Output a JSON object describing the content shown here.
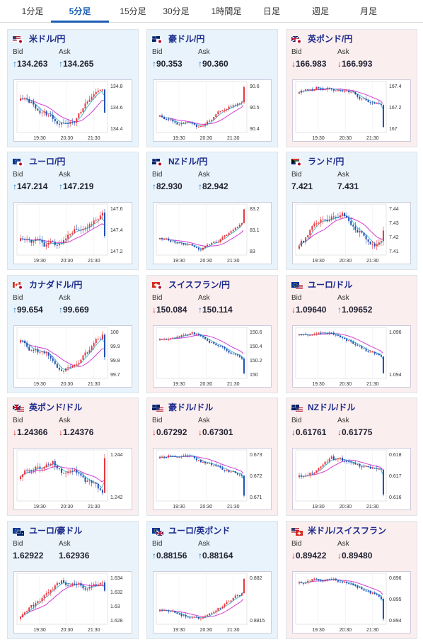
{
  "tabs": [
    "1分足",
    "5分足",
    "15分足",
    "30分足",
    "1時間足",
    "日足",
    "週足",
    "月足"
  ],
  "active_tab": "5分足",
  "labels": {
    "bid": "Bid",
    "ask": "Ask"
  },
  "colors": {
    "up_candle": "#e8343c",
    "down_candle": "#1f4fb4",
    "ma_pink": "#d23cd2",
    "ma_cyan": "#3bb3cf",
    "up_arrow": "#1a73b8",
    "down_arrow": "#d02424",
    "active_tab": "#1a5fb4"
  },
  "pairs": [
    {
      "name": "米ドル/円",
      "flag": "us-jp",
      "trend": "up",
      "bid": "134.263",
      "ask": "134.265",
      "yticks": [
        "134.8",
        "134.6",
        "134.4"
      ],
      "xticks": [
        "19:30",
        "20:30",
        "21:30"
      ]
    },
    {
      "name": "豪ドル/円",
      "flag": "au-jp",
      "trend": "up",
      "bid": "90.353",
      "ask": "90.360",
      "yticks": [
        "90.6",
        "90.5",
        "90.4"
      ],
      "xticks": [
        "19:30",
        "20:30",
        "21:30"
      ]
    },
    {
      "name": "英ポンド/円",
      "flag": "gb-jp",
      "trend": "down",
      "bid": "166.983",
      "ask": "166.993",
      "yticks": [
        "167.4",
        "167.2",
        "167"
      ],
      "xticks": [
        "19:30",
        "20:30",
        "21:30"
      ]
    },
    {
      "name": "ユーロ/円",
      "flag": "eu-jp",
      "trend": "up",
      "bid": "147.214",
      "ask": "147.219",
      "yticks": [
        "147.6",
        "147.4",
        "147.2"
      ],
      "xticks": [
        "19:30",
        "20:30",
        "21:30"
      ]
    },
    {
      "name": "NZドル/円",
      "flag": "nz-jp",
      "trend": "up",
      "bid": "82.930",
      "ask": "82.942",
      "yticks": [
        "83.2",
        "83.1",
        "83"
      ],
      "xticks": [
        "19:30",
        "20:30",
        "21:30"
      ]
    },
    {
      "name": "ランド/円",
      "flag": "za-jp",
      "trend": "flat",
      "bid": "7.421",
      "ask": "7.431",
      "yticks": [
        "7.44",
        "7.43",
        "7.42",
        "7.41"
      ],
      "xticks": [
        "19:30",
        "20:30",
        "21:30"
      ]
    },
    {
      "name": "カナダドル/円",
      "flag": "ca-jp",
      "trend": "up",
      "bid": "99.654",
      "ask": "99.669",
      "yticks": [
        "100",
        "99.9",
        "99.8",
        "99.7"
      ],
      "xticks": [
        "19:30",
        "20:30",
        "21:30"
      ]
    },
    {
      "name": "スイスフラン/円",
      "flag": "ch-jp",
      "trend": "down",
      "bid": "150.084",
      "ask": "150.114",
      "bid_dir": "down",
      "ask_dir": "up",
      "yticks": [
        "150.6",
        "150.4",
        "150.2",
        "150"
      ],
      "xticks": [
        "19:30",
        "20:30",
        "21:30"
      ]
    },
    {
      "name": "ユーロ/ドル",
      "flag": "eu-us",
      "trend": "down",
      "bid": "1.09640",
      "ask": "1.09652",
      "bid_dir": "down",
      "ask_dir": "up",
      "yticks": [
        "1.096",
        "1.094"
      ],
      "xticks": [
        "19:30",
        "20:30",
        "21:30"
      ]
    },
    {
      "name": "英ポンド/ドル",
      "flag": "gb-us",
      "trend": "down",
      "bid": "1.24366",
      "ask": "1.24376",
      "yticks": [
        "1.244",
        "1.242"
      ],
      "xticks": [
        "19:30",
        "20:30",
        "21:30"
      ]
    },
    {
      "name": "豪ドル/ドル",
      "flag": "au-us",
      "trend": "down",
      "bid": "0.67292",
      "ask": "0.67301",
      "yticks": [
        "0.673",
        "0.672",
        "0.671"
      ],
      "xticks": [
        "19:30",
        "20:30",
        "21:30"
      ]
    },
    {
      "name": "NZドル/ドル",
      "flag": "nz-us",
      "trend": "down",
      "bid": "0.61761",
      "ask": "0.61775",
      "yticks": [
        "0.618",
        "0.617",
        "0.616"
      ],
      "xticks": [
        "19:30",
        "20:30",
        "21:30"
      ]
    },
    {
      "name": "ユーロ/豪ドル",
      "flag": "eu-au",
      "trend": "flat",
      "bid": "1.62922",
      "ask": "1.62936",
      "yticks": [
        "1.634",
        "1.632",
        "1.63",
        "1.628"
      ],
      "xticks": [
        "19:30",
        "20:30",
        "21:30"
      ]
    },
    {
      "name": "ユーロ/英ポンド",
      "flag": "eu-gb",
      "trend": "up",
      "bid": "0.88156",
      "ask": "0.88164",
      "yticks": [
        "0.882",
        "0.8815"
      ],
      "xticks": [
        "19:30",
        "20:30",
        "21:30"
      ]
    },
    {
      "name": "米ドル/スイスフラン",
      "flag": "us-ch",
      "trend": "down",
      "bid": "0.89422",
      "ask": "0.89480",
      "yticks": [
        "0.896",
        "0.895",
        "0.894"
      ],
      "xticks": [
        "19:30",
        "20:30",
        "21:30"
      ]
    }
  ]
}
